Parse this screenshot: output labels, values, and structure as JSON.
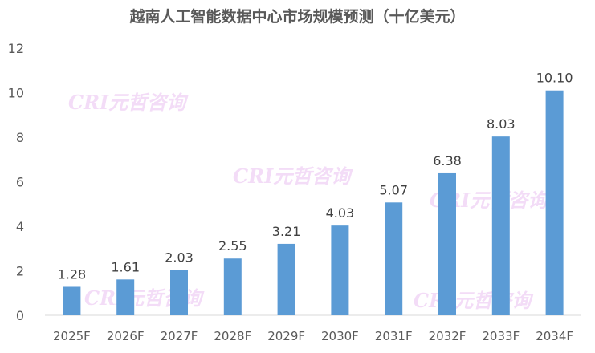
{
  "chart_data": {
    "type": "bar",
    "title": "越南人工智能数据中心市场规模预测（十亿美元）",
    "categories": [
      "2025F",
      "2026F",
      "2027F",
      "2028F",
      "2029F",
      "2030F",
      "2031F",
      "2032F",
      "2033F",
      "2034F"
    ],
    "values": [
      1.28,
      1.61,
      2.03,
      2.55,
      3.21,
      4.03,
      5.07,
      6.38,
      8.03,
      10.1
    ],
    "data_labels": [
      "1.28",
      "1.61",
      "2.03",
      "2.55",
      "3.21",
      "4.03",
      "5.07",
      "6.38",
      "8.03",
      "10.10"
    ],
    "xlabel": "",
    "ylabel": "",
    "ylim": [
      0,
      12
    ],
    "yticks": [
      "0",
      "2",
      "4",
      "6",
      "8",
      "10",
      "12"
    ],
    "grid": false,
    "bar_color": "#5b9bd5"
  },
  "watermark": "CRI元哲咨询"
}
